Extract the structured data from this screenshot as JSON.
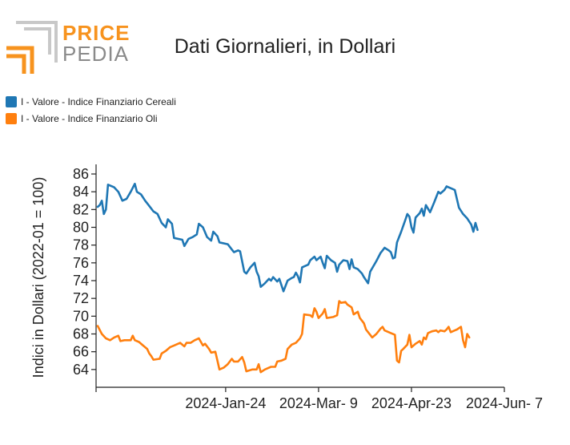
{
  "brand": {
    "price": "PRICE",
    "pedia": "PEDIA",
    "logo_colors": [
      "#f7931e",
      "#b9b9b9"
    ]
  },
  "chart_data": {
    "type": "line",
    "title": "Dati Giornalieri, in Dollari",
    "xlabel": "",
    "ylabel": "Indici in Dollari (2022-01 = 100)",
    "ylim": [
      62,
      86
    ],
    "xlim": [
      "2023-11-23",
      "2024-06-07"
    ],
    "yticks": [
      64,
      66,
      68,
      70,
      72,
      74,
      76,
      78,
      80,
      82,
      84,
      86
    ],
    "xticks": [
      {
        "date": "2024-01-24",
        "label": "2024-Jan-24"
      },
      {
        "date": "2024-03-09",
        "label": "2024-Mar- 9"
      },
      {
        "date": "2024-04-23",
        "label": "2024-Apr-23"
      },
      {
        "date": "2024-06-07",
        "label": "2024-Jun- 7"
      }
    ],
    "legend_position": "top-left",
    "grid": false,
    "series": [
      {
        "name": "I - Valore - Indice Finanziario Cereali",
        "color": "#1f77b4",
        "points": [
          [
            "2023-11-23",
            82.3
          ],
          [
            "2023-11-24",
            82.5
          ],
          [
            "2023-11-25",
            83.0
          ],
          [
            "2023-11-26",
            81.5
          ],
          [
            "2023-11-27",
            82.0
          ],
          [
            "2023-11-28",
            84.8
          ],
          [
            "2023-12-01",
            84.5
          ],
          [
            "2023-12-03",
            84.0
          ],
          [
            "2023-12-05",
            83.0
          ],
          [
            "2023-12-07",
            83.2
          ],
          [
            "2023-12-09",
            84.0
          ],
          [
            "2023-12-11",
            84.9
          ],
          [
            "2023-12-12",
            84.0
          ],
          [
            "2023-12-14",
            83.7
          ],
          [
            "2023-12-16",
            83.0
          ],
          [
            "2023-12-18",
            82.4
          ],
          [
            "2023-12-20",
            81.8
          ],
          [
            "2023-12-22",
            81.5
          ],
          [
            "2023-12-24",
            80.5
          ],
          [
            "2023-12-26",
            80.0
          ],
          [
            "2023-12-27",
            80.9
          ],
          [
            "2023-12-29",
            80.4
          ],
          [
            "2023-12-30",
            78.8
          ],
          [
            "2024-01-03",
            78.6
          ],
          [
            "2024-01-04",
            77.9
          ],
          [
            "2024-01-06",
            78.7
          ],
          [
            "2024-01-08",
            78.9
          ],
          [
            "2024-01-10",
            79.2
          ],
          [
            "2024-01-11",
            80.4
          ],
          [
            "2024-01-13",
            80.0
          ],
          [
            "2024-01-15",
            78.9
          ],
          [
            "2024-01-17",
            78.5
          ],
          [
            "2024-01-18",
            79.5
          ],
          [
            "2024-01-20",
            79.0
          ],
          [
            "2024-01-21",
            78.3
          ],
          [
            "2024-01-25",
            78.1
          ],
          [
            "2024-01-27",
            77.5
          ],
          [
            "2024-01-28",
            77.2
          ],
          [
            "2024-01-30",
            77.4
          ],
          [
            "2024-01-31",
            77.3
          ],
          [
            "2024-02-02",
            75.0
          ],
          [
            "2024-02-03",
            74.8
          ],
          [
            "2024-02-05",
            75.5
          ],
          [
            "2024-02-07",
            76.0
          ],
          [
            "2024-02-08",
            75.0
          ],
          [
            "2024-02-09",
            74.5
          ],
          [
            "2024-02-10",
            73.3
          ],
          [
            "2024-02-12",
            73.7
          ],
          [
            "2024-02-14",
            74.2
          ],
          [
            "2024-02-15",
            74.0
          ],
          [
            "2024-02-16",
            74.4
          ],
          [
            "2024-02-18",
            73.9
          ],
          [
            "2024-02-19",
            74.2
          ],
          [
            "2024-02-20",
            73.5
          ],
          [
            "2024-02-21",
            72.8
          ],
          [
            "2024-02-23",
            74.0
          ],
          [
            "2024-02-25",
            74.3
          ],
          [
            "2024-02-26",
            74.4
          ],
          [
            "2024-02-27",
            74.9
          ],
          [
            "2024-02-28",
            74.5
          ],
          [
            "2024-02-29",
            73.8
          ],
          [
            "2024-03-01",
            75.5
          ],
          [
            "2024-03-03",
            75.7
          ],
          [
            "2024-03-04",
            75.8
          ],
          [
            "2024-03-05",
            76.3
          ],
          [
            "2024-03-07",
            76.7
          ],
          [
            "2024-03-08",
            76.3
          ],
          [
            "2024-03-10",
            76.7
          ],
          [
            "2024-03-11",
            76.0
          ],
          [
            "2024-03-12",
            75.4
          ],
          [
            "2024-03-13",
            76.8
          ],
          [
            "2024-03-15",
            76.3
          ],
          [
            "2024-03-17",
            76.0
          ],
          [
            "2024-03-18",
            75.0
          ],
          [
            "2024-03-19",
            75.8
          ],
          [
            "2024-03-21",
            76.3
          ],
          [
            "2024-03-23",
            76.2
          ],
          [
            "2024-03-24",
            75.3
          ],
          [
            "2024-03-25",
            76.4
          ],
          [
            "2024-03-26",
            75.5
          ],
          [
            "2024-03-28",
            75.3
          ],
          [
            "2024-03-30",
            74.8
          ],
          [
            "2024-03-31",
            74.4
          ],
          [
            "2024-04-02",
            73.7
          ],
          [
            "2024-04-03",
            75.0
          ],
          [
            "2024-04-06",
            76.2
          ],
          [
            "2024-04-08",
            77.1
          ],
          [
            "2024-04-09",
            77.4
          ],
          [
            "2024-04-10",
            77.7
          ],
          [
            "2024-04-12",
            77.4
          ],
          [
            "2024-04-13",
            77.2
          ],
          [
            "2024-04-14",
            76.5
          ],
          [
            "2024-04-15",
            76.6
          ],
          [
            "2024-04-16",
            78.3
          ],
          [
            "2024-04-18",
            79.5
          ],
          [
            "2024-04-20",
            80.8
          ],
          [
            "2024-04-21",
            81.5
          ],
          [
            "2024-04-22",
            81.2
          ],
          [
            "2024-04-23",
            80.0
          ],
          [
            "2024-04-24",
            79.4
          ],
          [
            "2024-04-25",
            81.1
          ],
          [
            "2024-04-27",
            81.6
          ],
          [
            "2024-04-28",
            82.1
          ],
          [
            "2024-04-29",
            81.3
          ],
          [
            "2024-04-30",
            82.5
          ],
          [
            "2024-05-02",
            81.7
          ],
          [
            "2024-05-04",
            82.8
          ],
          [
            "2024-05-06",
            84.0
          ],
          [
            "2024-05-07",
            83.8
          ],
          [
            "2024-05-09",
            84.2
          ],
          [
            "2024-05-10",
            84.6
          ],
          [
            "2024-05-12",
            84.4
          ],
          [
            "2024-05-14",
            84.2
          ],
          [
            "2024-05-16",
            82.2
          ],
          [
            "2024-05-18",
            81.5
          ],
          [
            "2024-05-20",
            81.0
          ],
          [
            "2024-05-22",
            80.3
          ],
          [
            "2024-05-23",
            79.5
          ],
          [
            "2024-05-24",
            80.5
          ],
          [
            "2024-05-25",
            79.7
          ]
        ]
      },
      {
        "name": "I - Valore - Indice Finanziario Oli",
        "color": "#ff7f0e",
        "points": [
          [
            "2023-11-23",
            68.9
          ],
          [
            "2023-11-25",
            68.0
          ],
          [
            "2023-11-27",
            67.5
          ],
          [
            "2023-11-29",
            67.3
          ],
          [
            "2023-12-01",
            67.6
          ],
          [
            "2023-12-03",
            67.8
          ],
          [
            "2023-12-04",
            67.2
          ],
          [
            "2023-12-06",
            67.3
          ],
          [
            "2023-12-09",
            67.3
          ],
          [
            "2023-12-10",
            67.8
          ],
          [
            "2023-12-11",
            67.3
          ],
          [
            "2023-12-13",
            67.1
          ],
          [
            "2023-12-15",
            66.7
          ],
          [
            "2023-12-17",
            66.3
          ],
          [
            "2023-12-18",
            65.8
          ],
          [
            "2023-12-19",
            65.5
          ],
          [
            "2023-12-20",
            65.1
          ],
          [
            "2023-12-23",
            65.2
          ],
          [
            "2023-12-24",
            65.8
          ],
          [
            "2023-12-26",
            66.1
          ],
          [
            "2023-12-28",
            66.5
          ],
          [
            "2023-12-30",
            66.7
          ],
          [
            "2024-01-02",
            67.0
          ],
          [
            "2024-01-04",
            66.6
          ],
          [
            "2024-01-05",
            67.0
          ],
          [
            "2024-01-07",
            67.0
          ],
          [
            "2024-01-09",
            67.3
          ],
          [
            "2024-01-11",
            67.5
          ],
          [
            "2024-01-13",
            66.7
          ],
          [
            "2024-01-14",
            66.9
          ],
          [
            "2024-01-16",
            66.3
          ],
          [
            "2024-01-17",
            65.9
          ],
          [
            "2024-01-19",
            66.0
          ],
          [
            "2024-01-20",
            65.0
          ],
          [
            "2024-01-21",
            64.0
          ],
          [
            "2024-01-23",
            64.2
          ],
          [
            "2024-01-25",
            64.6
          ],
          [
            "2024-01-27",
            65.2
          ],
          [
            "2024-01-28",
            64.9
          ],
          [
            "2024-01-30",
            64.9
          ],
          [
            "2024-02-01",
            65.4
          ],
          [
            "2024-02-02",
            64.8
          ],
          [
            "2024-02-03",
            63.8
          ],
          [
            "2024-02-06",
            64.0
          ],
          [
            "2024-02-08",
            64.0
          ],
          [
            "2024-02-09",
            64.6
          ],
          [
            "2024-02-10",
            63.7
          ],
          [
            "2024-02-12",
            64.0
          ],
          [
            "2024-02-14",
            64.2
          ],
          [
            "2024-02-15",
            64.3
          ],
          [
            "2024-02-17",
            64.3
          ],
          [
            "2024-02-18",
            64.9
          ],
          [
            "2024-02-20",
            65.0
          ],
          [
            "2024-02-22",
            65.2
          ],
          [
            "2024-02-23",
            66.3
          ],
          [
            "2024-02-25",
            66.8
          ],
          [
            "2024-02-27",
            67.0
          ],
          [
            "2024-02-29",
            67.5
          ],
          [
            "2024-03-01",
            68.0
          ],
          [
            "2024-03-02",
            70.2
          ],
          [
            "2024-03-05",
            70.1
          ],
          [
            "2024-03-06",
            69.9
          ],
          [
            "2024-03-07",
            70.9
          ],
          [
            "2024-03-08",
            70.5
          ],
          [
            "2024-03-09",
            69.8
          ],
          [
            "2024-03-11",
            70.3
          ],
          [
            "2024-03-12",
            70.8
          ],
          [
            "2024-03-13",
            69.8
          ],
          [
            "2024-03-16",
            69.9
          ],
          [
            "2024-03-18",
            70.1
          ],
          [
            "2024-03-19",
            71.7
          ],
          [
            "2024-03-20",
            71.5
          ],
          [
            "2024-03-22",
            71.6
          ],
          [
            "2024-03-23",
            71.3
          ],
          [
            "2024-03-25",
            71.0
          ],
          [
            "2024-03-26",
            70.2
          ],
          [
            "2024-03-28",
            70.5
          ],
          [
            "2024-03-29",
            69.8
          ],
          [
            "2024-03-31",
            69.2
          ],
          [
            "2024-04-01",
            68.5
          ],
          [
            "2024-04-02",
            68.2
          ],
          [
            "2024-04-04",
            67.6
          ],
          [
            "2024-04-06",
            68.0
          ],
          [
            "2024-04-08",
            68.6
          ],
          [
            "2024-04-09",
            68.8
          ],
          [
            "2024-04-10",
            68.4
          ],
          [
            "2024-04-13",
            68.1
          ],
          [
            "2024-04-15",
            67.9
          ],
          [
            "2024-04-16",
            65.0
          ],
          [
            "2024-04-17",
            64.8
          ],
          [
            "2024-04-18",
            66.1
          ],
          [
            "2024-04-19",
            66.3
          ],
          [
            "2024-04-21",
            66.8
          ],
          [
            "2024-04-22",
            67.9
          ],
          [
            "2024-04-23",
            66.5
          ],
          [
            "2024-04-25",
            66.9
          ],
          [
            "2024-04-27",
            67.2
          ],
          [
            "2024-04-28",
            66.8
          ],
          [
            "2024-04-29",
            67.6
          ],
          [
            "2024-04-30",
            67.4
          ],
          [
            "2024-05-01",
            68.1
          ],
          [
            "2024-05-03",
            68.3
          ],
          [
            "2024-05-05",
            68.4
          ],
          [
            "2024-05-06",
            68.2
          ],
          [
            "2024-05-07",
            68.4
          ],
          [
            "2024-05-09",
            68.3
          ],
          [
            "2024-05-10",
            68.5
          ],
          [
            "2024-05-11",
            68.8
          ],
          [
            "2024-05-12",
            68.2
          ],
          [
            "2024-05-14",
            68.4
          ],
          [
            "2024-05-15",
            68.5
          ],
          [
            "2024-05-17",
            68.8
          ],
          [
            "2024-05-18",
            67.3
          ],
          [
            "2024-05-19",
            66.5
          ],
          [
            "2024-05-20",
            68.0
          ],
          [
            "2024-05-21",
            67.6
          ]
        ]
      }
    ]
  }
}
